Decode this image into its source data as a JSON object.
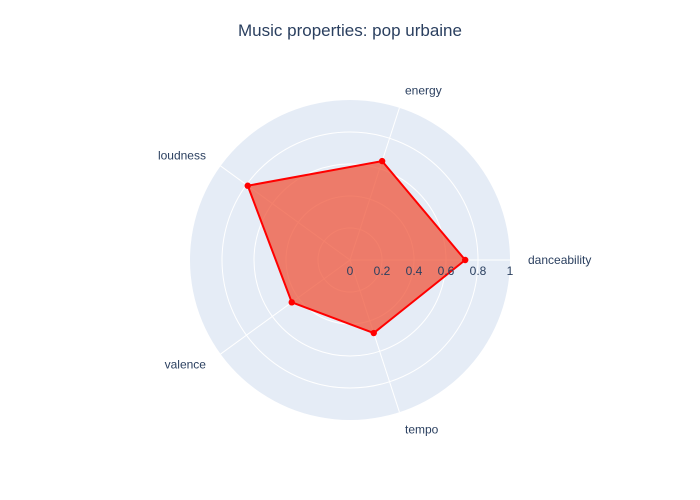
{
  "chart_data": {
    "type": "radar",
    "title": "Music properties: pop urbaine",
    "categories": [
      "danceability",
      "energy",
      "loudness",
      "valence",
      "tempo"
    ],
    "series": [
      {
        "values": [
          0.72,
          0.65,
          0.79,
          0.45,
          0.48
        ],
        "color": "#ff0000",
        "fill": "rgba(239,85,59,0.75)"
      }
    ],
    "radial_range": [
      0,
      1
    ],
    "radial_ticks": [
      "0",
      "0.2",
      "0.4",
      "0.6",
      "0.8",
      "1"
    ],
    "grid": true,
    "background": "#e5ecf6"
  }
}
